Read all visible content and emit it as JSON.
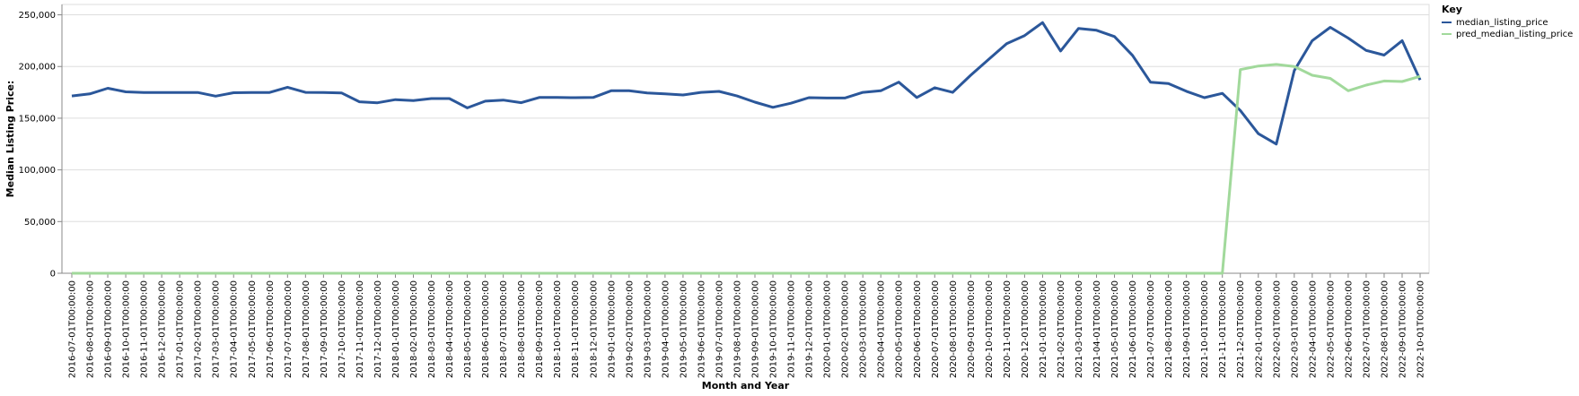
{
  "chart_data": {
    "type": "line",
    "xlabel": "Month and Year",
    "ylabel": "Median Listing Price:",
    "ylim": [
      0,
      260000
    ],
    "yticks": [
      0,
      50000,
      100000,
      150000,
      200000,
      250000
    ],
    "ytick_labels": [
      "0",
      "50,000",
      "100,000",
      "150,000",
      "200,000",
      "250,000"
    ],
    "grid": true,
    "legend": {
      "title": "Key",
      "placement": "top-right"
    },
    "x": [
      "2016-07-01T00:00:00",
      "2016-08-01T00:00:00",
      "2016-09-01T00:00:00",
      "2016-10-01T00:00:00",
      "2016-11-01T00:00:00",
      "2016-12-01T00:00:00",
      "2017-01-01T00:00:00",
      "2017-02-01T00:00:00",
      "2017-03-01T00:00:00",
      "2017-04-01T00:00:00",
      "2017-05-01T00:00:00",
      "2017-06-01T00:00:00",
      "2017-07-01T00:00:00",
      "2017-08-01T00:00:00",
      "2017-09-01T00:00:00",
      "2017-10-01T00:00:00",
      "2017-11-01T00:00:00",
      "2017-12-01T00:00:00",
      "2018-01-01T00:00:00",
      "2018-02-01T00:00:00",
      "2018-03-01T00:00:00",
      "2018-04-01T00:00:00",
      "2018-05-01T00:00:00",
      "2018-06-01T00:00:00",
      "2018-07-01T00:00:00",
      "2018-08-01T00:00:00",
      "2018-09-01T00:00:00",
      "2018-10-01T00:00:00",
      "2018-11-01T00:00:00",
      "2018-12-01T00:00:00",
      "2019-01-01T00:00:00",
      "2019-02-01T00:00:00",
      "2019-03-01T00:00:00",
      "2019-04-01T00:00:00",
      "2019-05-01T00:00:00",
      "2019-06-01T00:00:00",
      "2019-07-01T00:00:00",
      "2019-08-01T00:00:00",
      "2019-09-01T00:00:00",
      "2019-10-01T00:00:00",
      "2019-11-01T00:00:00",
      "2019-12-01T00:00:00",
      "2020-01-01T00:00:00",
      "2020-02-01T00:00:00",
      "2020-03-01T00:00:00",
      "2020-04-01T00:00:00",
      "2020-05-01T00:00:00",
      "2020-06-01T00:00:00",
      "2020-07-01T00:00:00",
      "2020-08-01T00:00:00",
      "2020-09-01T00:00:00",
      "2020-10-01T00:00:00",
      "2020-11-01T00:00:00",
      "2020-12-01T00:00:00",
      "2021-01-01T00:00:00",
      "2021-02-01T00:00:00",
      "2021-03-01T00:00:00",
      "2021-04-01T00:00:00",
      "2021-05-01T00:00:00",
      "2021-06-01T00:00:00",
      "2021-07-01T00:00:00",
      "2021-08-01T00:00:00",
      "2021-09-01T00:00:00",
      "2021-10-01T00:00:00",
      "2021-11-01T00:00:00",
      "2021-12-01T00:00:00",
      "2022-01-01T00:00:00",
      "2022-02-01T00:00:00",
      "2022-03-01T00:00:00",
      "2022-04-01T00:00:00",
      "2022-05-01T00:00:00",
      "2022-06-01T00:00:00",
      "2022-07-01T00:00:00",
      "2022-08-01T00:00:00",
      "2022-09-01T00:00:00",
      "2022-10-01T00:00:00"
    ],
    "series": [
      {
        "name": "median_listing_price",
        "color": "#2b579a",
        "values": [
          171500,
          173500,
          179000,
          175500,
          174900,
          174900,
          174900,
          174900,
          171300,
          174600,
          174900,
          174900,
          179900,
          175000,
          174900,
          174500,
          165900,
          164900,
          168000,
          167000,
          169000,
          169000,
          160000,
          166500,
          167500,
          165000,
          170000,
          170000,
          169900,
          170000,
          176500,
          176500,
          174500,
          173500,
          172500,
          175000,
          175900,
          171500,
          165500,
          160500,
          164500,
          169900,
          169500,
          169500,
          175000,
          176500,
          184900,
          170000,
          179500,
          175000,
          191500,
          207000,
          222000,
          229900,
          242500,
          215000,
          236900,
          235000,
          229000,
          210800,
          184900,
          183500,
          176000,
          169900,
          174000,
          157500,
          135000,
          125000,
          196000,
          225000,
          237900,
          227500,
          215500,
          211000,
          225000,
          187000
        ]
      },
      {
        "name": "pred_median_listing_price",
        "color": "#a1d99b",
        "values": [
          0,
          0,
          0,
          0,
          0,
          0,
          0,
          0,
          0,
          0,
          0,
          0,
          0,
          0,
          0,
          0,
          0,
          0,
          0,
          0,
          0,
          0,
          0,
          0,
          0,
          0,
          0,
          0,
          0,
          0,
          0,
          0,
          0,
          0,
          0,
          0,
          0,
          0,
          0,
          0,
          0,
          0,
          0,
          0,
          0,
          0,
          0,
          0,
          0,
          0,
          0,
          0,
          0,
          0,
          0,
          0,
          0,
          0,
          0,
          0,
          0,
          0,
          0,
          0,
          0,
          197000,
          200500,
          202000,
          200000,
          191500,
          188500,
          176500,
          182000,
          186000,
          185500,
          190500
        ]
      }
    ]
  }
}
